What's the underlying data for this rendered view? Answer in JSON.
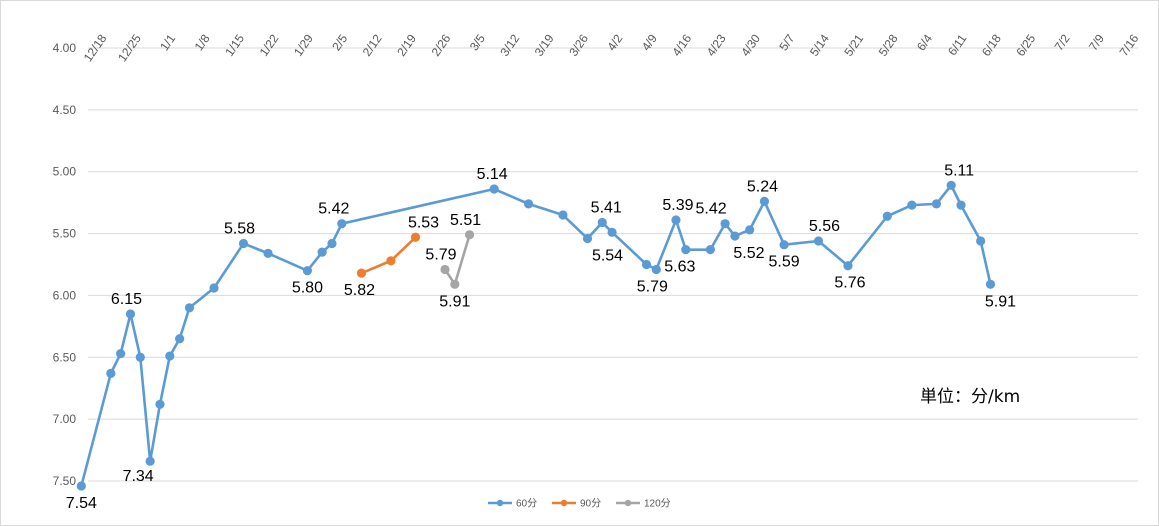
{
  "chart_data": {
    "type": "line",
    "y_axis": {
      "ticks": [
        "4.00",
        "4.50",
        "5.00",
        "5.50",
        "6.00",
        "6.50",
        "7.00",
        "7.50"
      ],
      "min": 4.0,
      "max": 7.5,
      "reversed": true
    },
    "x_axis": {
      "tick_labels": [
        "12/18",
        "12/25",
        "1/1",
        "1/8",
        "1/15",
        "1/22",
        "1/29",
        "2/5",
        "2/12",
        "2/19",
        "2/26",
        "3/5",
        "3/12",
        "3/19",
        "3/26",
        "4/2",
        "4/9",
        "4/16",
        "4/23",
        "4/30",
        "5/7",
        "5/14",
        "5/21",
        "5/28",
        "6/4",
        "6/11",
        "6/18",
        "6/25",
        "7/2",
        "7/9",
        "7/16"
      ],
      "position": "top",
      "rotated": true
    },
    "grid": true,
    "legend_position": "bottom",
    "annotation": "単位：分/km",
    "series": [
      {
        "name": "60分",
        "color": "#5b9bd5",
        "points": [
          {
            "x": "12/14",
            "y": 7.54,
            "label": "7.54"
          },
          {
            "x": "12/20",
            "y": 6.63
          },
          {
            "x": "12/22",
            "y": 6.47
          },
          {
            "x": "12/24",
            "y": 6.15,
            "label": "6.15"
          },
          {
            "x": "12/26",
            "y": 6.5
          },
          {
            "x": "12/28",
            "y": 7.34,
            "label": "7.34"
          },
          {
            "x": "12/30",
            "y": 6.88
          },
          {
            "x": "1/1",
            "y": 6.49
          },
          {
            "x": "1/3",
            "y": 6.35
          },
          {
            "x": "1/5",
            "y": 6.1
          },
          {
            "x": "1/10",
            "y": 5.94
          },
          {
            "x": "1/16",
            "y": 5.58,
            "label": "5.58"
          },
          {
            "x": "1/21",
            "y": 5.66
          },
          {
            "x": "1/29",
            "y": 5.8,
            "label": "5.80"
          },
          {
            "x": "2/1",
            "y": 5.65
          },
          {
            "x": "2/3",
            "y": 5.58
          },
          {
            "x": "2/5",
            "y": 5.42,
            "label": "5.42"
          },
          {
            "x": "3/8",
            "y": 5.14,
            "label": "5.14"
          },
          {
            "x": "3/15",
            "y": 5.26
          },
          {
            "x": "3/22",
            "y": 5.35
          },
          {
            "x": "3/27",
            "y": 5.54,
            "label": "5.54"
          },
          {
            "x": "3/30",
            "y": 5.41,
            "label": "5.41"
          },
          {
            "x": "4/1",
            "y": 5.49
          },
          {
            "x": "4/8",
            "y": 5.75
          },
          {
            "x": "4/10",
            "y": 5.79,
            "label": "5.79"
          },
          {
            "x": "4/14",
            "y": 5.39,
            "label": "5.39"
          },
          {
            "x": "4/16",
            "y": 5.63,
            "label": "5.63"
          },
          {
            "x": "4/21",
            "y": 5.63
          },
          {
            "x": "4/24",
            "y": 5.42,
            "label": "5.42"
          },
          {
            "x": "4/26",
            "y": 5.52,
            "label": "5.52"
          },
          {
            "x": "4/29",
            "y": 5.47
          },
          {
            "x": "5/2",
            "y": 5.24,
            "label": "5.24"
          },
          {
            "x": "5/6",
            "y": 5.59,
            "label": "5.59"
          },
          {
            "x": "5/13",
            "y": 5.56,
            "label": "5.56"
          },
          {
            "x": "5/19",
            "y": 5.76,
            "label": "5.76"
          },
          {
            "x": "5/27",
            "y": 5.36
          },
          {
            "x": "6/1",
            "y": 5.27
          },
          {
            "x": "6/6",
            "y": 5.26
          },
          {
            "x": "6/9",
            "y": 5.11,
            "label": "5.11"
          },
          {
            "x": "6/11",
            "y": 5.27
          },
          {
            "x": "6/15",
            "y": 5.56
          },
          {
            "x": "6/17",
            "y": 5.91,
            "label": "5.91"
          }
        ]
      },
      {
        "name": "90分",
        "color": "#ed7d31",
        "points": [
          {
            "x": "2/9",
            "y": 5.82,
            "label": "5.82"
          },
          {
            "x": "2/15",
            "y": 5.72
          },
          {
            "x": "2/20",
            "y": 5.53,
            "label": "5.53"
          }
        ]
      },
      {
        "name": "120分",
        "color": "#a5a5a5",
        "points": [
          {
            "x": "2/26",
            "y": 5.79,
            "label": "5.79"
          },
          {
            "x": "2/28",
            "y": 5.91,
            "label": "5.91"
          },
          {
            "x": "3/3",
            "y": 5.51,
            "label": "5.51"
          }
        ]
      }
    ]
  }
}
